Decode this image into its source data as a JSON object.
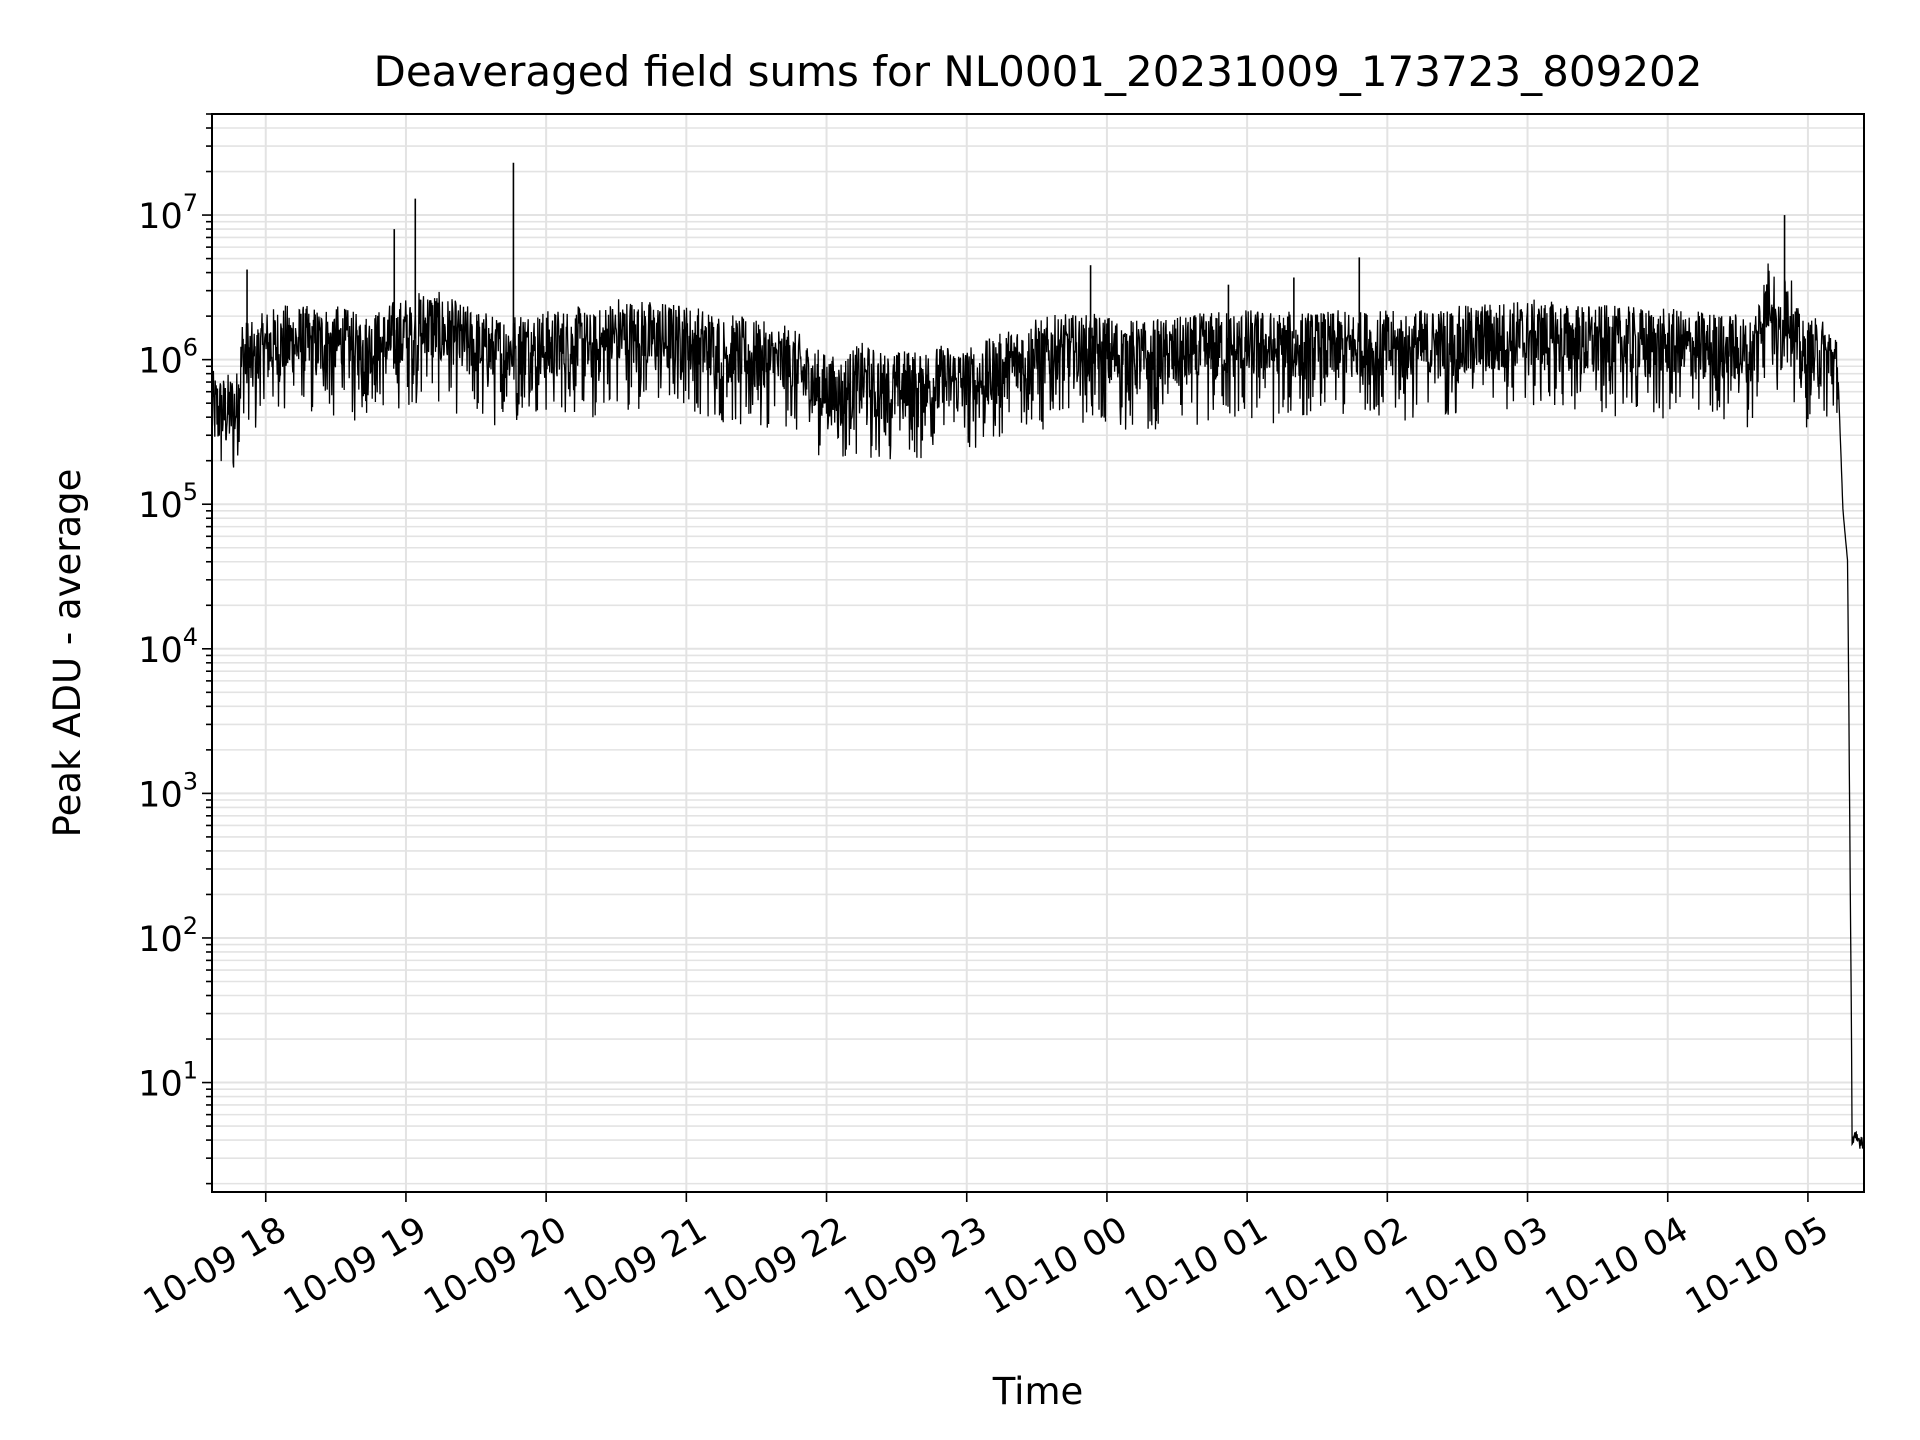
{
  "chart_data": {
    "type": "line",
    "title": "Deaveraged field sums for NL0001_20231009_173723_809202",
    "xlabel": "Time",
    "ylabel": "Peak ADU - average",
    "y_scale": "log",
    "ylim": [
      1.75,
      50000000
    ],
    "xlim": [
      "2023-10-09 17:37",
      "2023-10-10 05:24"
    ],
    "grid": true,
    "line_color": "#000000",
    "grid_color": "#e3e3e3",
    "x_ticks": [
      {
        "value": "2023-10-09 18:00",
        "label": "10-09 18"
      },
      {
        "value": "2023-10-09 19:00",
        "label": "10-09 19"
      },
      {
        "value": "2023-10-09 20:00",
        "label": "10-09 20"
      },
      {
        "value": "2023-10-09 21:00",
        "label": "10-09 21"
      },
      {
        "value": "2023-10-09 22:00",
        "label": "10-09 22"
      },
      {
        "value": "2023-10-09 23:00",
        "label": "10-09 23"
      },
      {
        "value": "2023-10-10 00:00",
        "label": "10-10 00"
      },
      {
        "value": "2023-10-10 01:00",
        "label": "10-10 01"
      },
      {
        "value": "2023-10-10 02:00",
        "label": "10-10 02"
      },
      {
        "value": "2023-10-10 03:00",
        "label": "10-10 03"
      },
      {
        "value": "2023-10-10 04:00",
        "label": "10-10 04"
      },
      {
        "value": "2023-10-10 05:00",
        "label": "10-10 05"
      }
    ],
    "y_ticks": [
      {
        "value": 10,
        "label": "10",
        "exp": "1"
      },
      {
        "value": 100,
        "label": "10",
        "exp": "2"
      },
      {
        "value": 1000,
        "label": "10",
        "exp": "3"
      },
      {
        "value": 10000,
        "label": "10",
        "exp": "4"
      },
      {
        "value": 100000,
        "label": "10",
        "exp": "5"
      },
      {
        "value": 1000000,
        "label": "10",
        "exp": "6"
      },
      {
        "value": 10000000,
        "label": "10",
        "exp": "7"
      }
    ],
    "series": [
      {
        "x": [
          "2023-10-09 17:37",
          "2023-10-09 17:42",
          "2023-10-09 17:48",
          "2023-10-09 17:50",
          "2023-10-09 17:52",
          "2023-10-09 17:53",
          "2023-10-09 17:55",
          "2023-10-09 18:00",
          "2023-10-09 18:10",
          "2023-10-09 18:20",
          "2023-10-09 18:30",
          "2023-10-09 18:40",
          "2023-10-09 18:50",
          "2023-10-09 18:55",
          "2023-10-09 18:58",
          "2023-10-09 19:00",
          "2023-10-09 19:04",
          "2023-10-09 19:06",
          "2023-10-09 19:10",
          "2023-10-09 19:20",
          "2023-10-09 19:30",
          "2023-10-09 19:40",
          "2023-10-09 19:46",
          "2023-10-09 19:48",
          "2023-10-09 19:55",
          "2023-10-09 20:05",
          "2023-10-09 20:15",
          "2023-10-09 20:20",
          "2023-10-09 20:30",
          "2023-10-09 20:40",
          "2023-10-09 20:50",
          "2023-10-09 21:00",
          "2023-10-09 21:15",
          "2023-10-09 21:30",
          "2023-10-09 21:45",
          "2023-10-09 21:55",
          "2023-10-09 22:05",
          "2023-10-09 22:15",
          "2023-10-09 22:25",
          "2023-10-09 22:40",
          "2023-10-09 22:55",
          "2023-10-09 23:00",
          "2023-10-09 23:10",
          "2023-10-09 23:25",
          "2023-10-09 23:40",
          "2023-10-09 23:53",
          "2023-10-09 23:58",
          "2023-10-10 00:15",
          "2023-10-10 00:30",
          "2023-10-10 00:45",
          "2023-10-10 00:52",
          "2023-10-10 01:00",
          "2023-10-10 01:15",
          "2023-10-10 01:20",
          "2023-10-10 01:35",
          "2023-10-10 01:48",
          "2023-10-10 01:52",
          "2023-10-10 02:05",
          "2023-10-10 02:15",
          "2023-10-10 02:30",
          "2023-10-10 02:45",
          "2023-10-10 03:00",
          "2023-10-10 03:20",
          "2023-10-10 03:40",
          "2023-10-10 04:00",
          "2023-10-10 04:20",
          "2023-10-10 04:36",
          "2023-10-10 04:44",
          "2023-10-10 04:50",
          "2023-10-10 04:57",
          "2023-10-10 05:05",
          "2023-10-10 05:10",
          "2023-10-10 05:13",
          "2023-10-10 05:15",
          "2023-10-10 05:17",
          "2023-10-10 05:19",
          "2023-10-10 05:24"
        ],
        "y": [
          450000,
          420000,
          460000,
          1100000,
          4200000,
          1000000,
          950000,
          1200000,
          1300000,
          1250000,
          1300000,
          1100000,
          1200000,
          8000000,
          1400000,
          1500000,
          13000000,
          1600000,
          1700000,
          1400000,
          1200000,
          1100000,
          23000000,
          1200000,
          1150000,
          1200000,
          1250000,
          1100000,
          1500000,
          1400000,
          1350000,
          1300000,
          1150000,
          1000000,
          900000,
          650000,
          550000,
          700000,
          600000,
          650000,
          700000,
          650000,
          750000,
          1000000,
          1100000,
          4500000,
          1100000,
          1000000,
          1050000,
          1150000,
          3300000,
          1200000,
          1150000,
          3700000,
          1150000,
          5100000,
          1200000,
          1150000,
          1200000,
          1250000,
          1350000,
          1400000,
          1300000,
          1250000,
          1200000,
          1150000,
          1100000,
          3000000,
          10000000,
          1000000,
          1050000,
          1000000,
          700000,
          90000,
          40000,
          4,
          4
        ]
      }
    ]
  }
}
